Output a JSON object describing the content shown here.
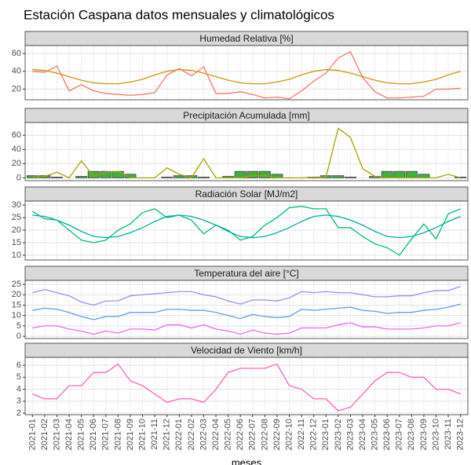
{
  "title": "Estación Caspana datos mensuales y climatológicos",
  "x_label": "meses",
  "categories": [
    "2021-01",
    "2021-02",
    "2021-03",
    "2021-04",
    "2021-05",
    "2021-06",
    "2021-07",
    "2021-08",
    "2021-09",
    "2021-10",
    "2021-11",
    "2021-12",
    "2022-01",
    "2022-02",
    "2022-03",
    "2022-04",
    "2022-05",
    "2022-06",
    "2022-07",
    "2022-08",
    "2022-09",
    "2022-10",
    "2022-11",
    "2022-12",
    "2023-01",
    "2023-02",
    "2023-03",
    "2023-04",
    "2023-05",
    "2023-06",
    "2023-07",
    "2023-08",
    "2023-09",
    "2023-10",
    "2023-11",
    "2023-12"
  ],
  "chart_data": [
    {
      "type": "line",
      "title": "Humedad Relativa [%]",
      "ylim": [
        8,
        69
      ],
      "yticks": [
        20,
        40,
        60
      ],
      "grid": true,
      "series": [
        {
          "type": "line",
          "color": "#F8766D",
          "values": [
            40,
            39,
            46,
            18,
            25,
            18,
            15,
            14,
            13,
            14,
            16,
            36,
            43,
            35,
            45,
            15,
            15,
            17,
            14,
            10,
            11,
            9,
            18,
            29,
            38,
            55,
            62,
            33,
            17,
            10,
            10,
            11,
            12,
            20,
            20,
            21
          ]
        },
        {
          "type": "line",
          "color": "#D4940A",
          "values": [
            42,
            41,
            38,
            34,
            30,
            27,
            26,
            26,
            28,
            31,
            36,
            40,
            42,
            41,
            38,
            34,
            30,
            27,
            26,
            26,
            28,
            31,
            36,
            40,
            42,
            41,
            38,
            34,
            30,
            27,
            26,
            26,
            28,
            31,
            36,
            40
          ]
        }
      ]
    },
    {
      "type": "combo",
      "title": "Precipitación Acumulada [mm]",
      "ylim": [
        -4,
        78
      ],
      "yticks": [
        0,
        20,
        40,
        60
      ],
      "grid": true,
      "series": [
        {
          "type": "bar",
          "color": "#3BB33B",
          "values": [
            3,
            3,
            1,
            0,
            2,
            9,
            9,
            9,
            5,
            0,
            0,
            1,
            3,
            3,
            1,
            0,
            2,
            9,
            9,
            9,
            5,
            0,
            0,
            1,
            3,
            3,
            1,
            0,
            2,
            9,
            9,
            9,
            5,
            0,
            0,
            1
          ]
        },
        {
          "type": "line",
          "color": "#A3A500",
          "values": [
            1,
            2,
            8,
            0,
            24,
            2,
            8,
            9,
            0,
            0,
            0,
            14,
            5,
            0,
            27,
            0,
            0,
            0,
            3,
            3,
            0,
            0,
            0,
            1,
            1,
            70,
            57,
            13,
            2,
            0,
            0,
            0,
            0,
            0,
            5,
            0
          ]
        }
      ]
    },
    {
      "type": "line",
      "title": "Radiación Solar [MJ/m2]",
      "ylim": [
        8.1,
        31.6
      ],
      "yticks": [
        10,
        15,
        20,
        25,
        30
      ],
      "grid": true,
      "series": [
        {
          "type": "line",
          "color": "#00BF7D",
          "values": [
            27.5,
            24.5,
            24,
            20,
            16,
            15,
            16,
            20,
            22.5,
            27,
            28.5,
            25,
            26,
            24,
            18.5,
            22,
            20,
            16,
            17.5,
            22,
            25,
            29,
            29.5,
            28.5,
            28.5,
            21,
            21,
            17.5,
            14.5,
            13,
            10,
            16.5,
            22.5,
            16.5,
            26.5,
            28.5
          ]
        },
        {
          "type": "line",
          "color": "#00B0A6",
          "values": [
            26,
            25.5,
            24,
            22,
            19.5,
            17.5,
            17,
            17.5,
            19,
            21,
            23.5,
            25.5,
            26,
            25.5,
            24,
            22,
            19.5,
            17.5,
            17,
            17.5,
            19,
            21,
            23.5,
            25.5,
            26,
            25.5,
            24,
            22,
            19.5,
            17.5,
            17,
            17.5,
            19,
            21,
            23.5,
            25.5
          ]
        }
      ]
    },
    {
      "type": "line",
      "title": "Temperatura del aire [°C]",
      "ylim": [
        -1.1,
        26.9
      ],
      "yticks": [
        0,
        5,
        10,
        15,
        20,
        25
      ],
      "grid": true,
      "series": [
        {
          "type": "line",
          "color": "#9590FF",
          "values": [
            21,
            22.5,
            21,
            19.5,
            16.5,
            15,
            17,
            17,
            19.5,
            20,
            20.5,
            21,
            21.5,
            21.5,
            20,
            19,
            17,
            15.5,
            17.5,
            17.5,
            17,
            18.5,
            21.5,
            21,
            21.5,
            21,
            21,
            20,
            19,
            19,
            19.5,
            19.5,
            21,
            22,
            22,
            24
          ]
        },
        {
          "type": "line",
          "color": "#619CFF",
          "values": [
            12.5,
            13.5,
            13,
            11.5,
            9.5,
            8,
            9.5,
            9.5,
            11.5,
            11.5,
            11.5,
            13,
            13,
            12.5,
            12.5,
            11.5,
            10,
            8.5,
            10.5,
            9.5,
            9,
            9.5,
            13,
            12.5,
            13,
            13.5,
            14,
            12.5,
            12,
            11,
            11.5,
            11.5,
            12.5,
            13,
            14,
            15.5
          ]
        },
        {
          "type": "line",
          "color": "#E76BF3",
          "values": [
            4,
            5,
            5,
            3.5,
            2.5,
            1,
            2.5,
            1.5,
            3.5,
            3.5,
            3,
            5.5,
            5.5,
            4,
            5.5,
            3.5,
            2.5,
            1,
            3,
            1.5,
            1,
            1.5,
            4,
            4,
            4,
            5.5,
            6.5,
            4.5,
            4.5,
            3.5,
            3.5,
            3.5,
            4,
            5,
            5,
            6.5
          ]
        }
      ]
    },
    {
      "type": "line",
      "title": "Velocidad de Viento [km/h]",
      "ylim": [
        1.87,
        6.66
      ],
      "yticks": [
        2,
        3,
        4,
        5,
        6
      ],
      "grid": true,
      "series": [
        {
          "type": "line",
          "color": "#FF62BC",
          "values": [
            3.6,
            3.2,
            3.2,
            4.3,
            4.3,
            5.4,
            5.4,
            6.1,
            4.7,
            4.3,
            3.6,
            2.9,
            3.2,
            3.2,
            2.9,
            4,
            5.4,
            5.75,
            5.75,
            5.75,
            6.1,
            4.3,
            4,
            3.2,
            3.2,
            2.2,
            2.5,
            3.6,
            4.7,
            5.4,
            5.4,
            5,
            5,
            4,
            4,
            3.6
          ]
        }
      ]
    }
  ]
}
